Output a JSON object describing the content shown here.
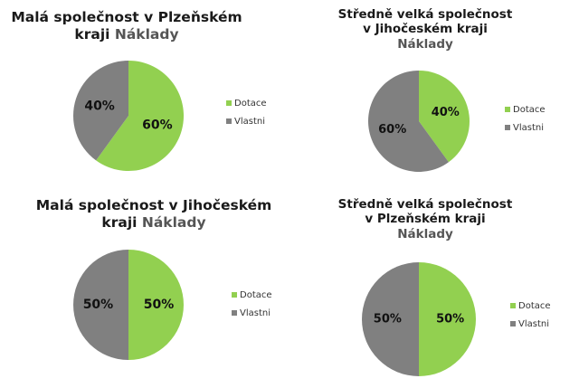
{
  "colors": {
    "dotace": "#92d050",
    "vlastni": "#808080"
  },
  "chart_data": [
    {
      "type": "pie",
      "title_main": "Malá společnost v Plzeňském",
      "title_line2": "kraji",
      "title_accent": "Náklady",
      "slices": [
        {
          "label": "Dotace",
          "value": 60,
          "value_label": "60%",
          "color": "#92d050"
        },
        {
          "label": "Vlastni",
          "value": 40,
          "value_label": "40%",
          "color": "#808080"
        }
      ],
      "legend": [
        "Dotace",
        "Vlastni"
      ],
      "legend_position": "right"
    },
    {
      "type": "pie",
      "title_main": "Středně velká společnost",
      "title_line2": "v Jihočeském kraji",
      "title_accent": "Náklady",
      "slices": [
        {
          "label": "Dotace",
          "value": 40,
          "value_label": "40%",
          "color": "#92d050"
        },
        {
          "label": "Vlastni",
          "value": 60,
          "value_label": "60%",
          "color": "#808080"
        }
      ],
      "legend": [
        "Dotace",
        "Vlastni"
      ],
      "legend_position": "right"
    },
    {
      "type": "pie",
      "title_main": "Malá společnost v Jihočeském",
      "title_line2": "kraji",
      "title_accent": "Náklady",
      "slices": [
        {
          "label": "Dotace",
          "value": 50,
          "value_label": "50%",
          "color": "#92d050"
        },
        {
          "label": "Vlastni",
          "value": 50,
          "value_label": "50%",
          "color": "#808080"
        }
      ],
      "legend": [
        "Dotace",
        "Vlastni"
      ],
      "legend_position": "right"
    },
    {
      "type": "pie",
      "title_main": "Středně velká společnost",
      "title_line2": "v Plzeňském kraji",
      "title_accent": "Náklady",
      "slices": [
        {
          "label": "Dotace",
          "value": 50,
          "value_label": "50%",
          "color": "#92d050"
        },
        {
          "label": "Vlastni",
          "value": 50,
          "value_label": "50%",
          "color": "#808080"
        }
      ],
      "legend": [
        "Dotace",
        "Vlastni"
      ],
      "legend_position": "right"
    }
  ]
}
